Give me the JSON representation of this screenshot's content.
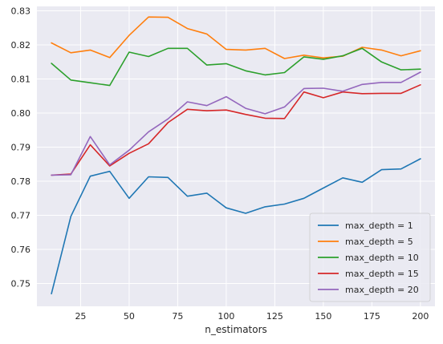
{
  "chart_data": {
    "type": "line",
    "title": "",
    "xlabel": "n_estimators",
    "ylabel": "",
    "xlim": [
      2.5,
      207.5
    ],
    "ylim": [
      0.7433,
      0.8313
    ],
    "xticks": [
      25,
      50,
      75,
      100,
      125,
      150,
      175,
      200
    ],
    "yticks": [
      0.75,
      0.76,
      0.77,
      0.78,
      0.79,
      0.8,
      0.81,
      0.82,
      0.83
    ],
    "ytick_labels": [
      "0.75",
      "0.76",
      "0.77",
      "0.78",
      "0.79",
      "0.80",
      "0.81",
      "0.82",
      "0.83"
    ],
    "grid": true,
    "background": "#eaeaf2",
    "legend_position": "lower-right",
    "x": [
      10,
      20,
      30,
      40,
      50,
      60,
      70,
      80,
      90,
      100,
      110,
      120,
      130,
      140,
      150,
      160,
      170,
      180,
      190,
      200
    ],
    "series": [
      {
        "name": "max_depth = 1",
        "color": "#1f77b4",
        "values": [
          0.747,
          0.7697,
          0.7815,
          0.7829,
          0.775,
          0.7813,
          0.7811,
          0.7756,
          0.7765,
          0.7722,
          0.7706,
          0.7725,
          0.7733,
          0.775,
          0.778,
          0.781,
          0.7797,
          0.7834,
          0.7836,
          0.7866
        ]
      },
      {
        "name": "max_depth = 5",
        "color": "#ff7f0e",
        "values": [
          0.8206,
          0.8177,
          0.8185,
          0.8163,
          0.8228,
          0.8282,
          0.8281,
          0.8248,
          0.8232,
          0.8187,
          0.8185,
          0.819,
          0.816,
          0.817,
          0.8162,
          0.8167,
          0.8193,
          0.8185,
          0.8168,
          0.8183
        ]
      },
      {
        "name": "max_depth = 10",
        "color": "#2ca02c",
        "values": [
          0.8146,
          0.8097,
          0.8089,
          0.8081,
          0.8179,
          0.8166,
          0.819,
          0.819,
          0.8141,
          0.8145,
          0.8124,
          0.8112,
          0.8119,
          0.8165,
          0.8158,
          0.8168,
          0.819,
          0.815,
          0.8127,
          0.8129
        ]
      },
      {
        "name": "max_depth = 15",
        "color": "#d62728",
        "values": [
          0.7818,
          0.7821,
          0.7907,
          0.7845,
          0.7882,
          0.791,
          0.7972,
          0.8011,
          0.8007,
          0.8009,
          0.7996,
          0.7985,
          0.7984,
          0.8062,
          0.8045,
          0.8062,
          0.8057,
          0.8058,
          0.8058,
          0.8083
        ]
      },
      {
        "name": "max_depth = 20",
        "color": "#9467bd",
        "values": [
          0.7818,
          0.7819,
          0.7931,
          0.7848,
          0.7891,
          0.7945,
          0.7983,
          0.8033,
          0.8022,
          0.8048,
          0.8014,
          0.7998,
          0.8018,
          0.8072,
          0.8073,
          0.8064,
          0.8084,
          0.809,
          0.809,
          0.812
        ]
      }
    ]
  }
}
